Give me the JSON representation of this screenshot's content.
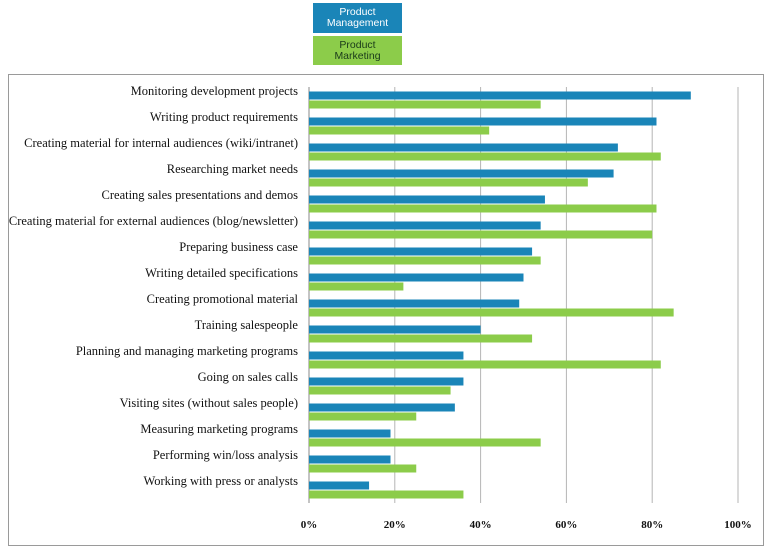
{
  "legend": {
    "pm_line1": "Product",
    "pm_line2": "Management",
    "mk_line1": "Product",
    "mk_line2": "Marketing"
  },
  "colors": {
    "product_management": "#1a85b8",
    "product_marketing": "#8ccc4a"
  },
  "chart_data": {
    "type": "bar",
    "orientation": "horizontal",
    "categories": [
      "Monitoring development projects",
      "Writing product requirements",
      "Creating material for internal audiences (wiki/intranet)",
      "Researching market needs",
      "Creating sales presentations and demos",
      "Creating material for external audiences (blog/newsletter)",
      "Preparing business case",
      "Writing detailed specifications",
      "Creating  promotional material",
      "Training salespeople",
      "Planning and managing marketing programs",
      "Going on sales calls",
      "Visiting sites (without sales people)",
      "Measuring marketing programs",
      "Performing win/loss analysis",
      "Working with press or analysts"
    ],
    "series": [
      {
        "name": "Product Management",
        "values": [
          89,
          81,
          72,
          71,
          55,
          54,
          52,
          50,
          49,
          40,
          36,
          36,
          34,
          19,
          19,
          14
        ]
      },
      {
        "name": "Product Marketing",
        "values": [
          54,
          42,
          82,
          65,
          81,
          80,
          54,
          22,
          85,
          52,
          82,
          33,
          25,
          54,
          25,
          36
        ]
      }
    ],
    "xlim": [
      0,
      100
    ],
    "xticks": [
      "0%",
      "20%",
      "40%",
      "60%",
      "80%",
      "100%"
    ],
    "grid": true,
    "legend_position": "top"
  }
}
